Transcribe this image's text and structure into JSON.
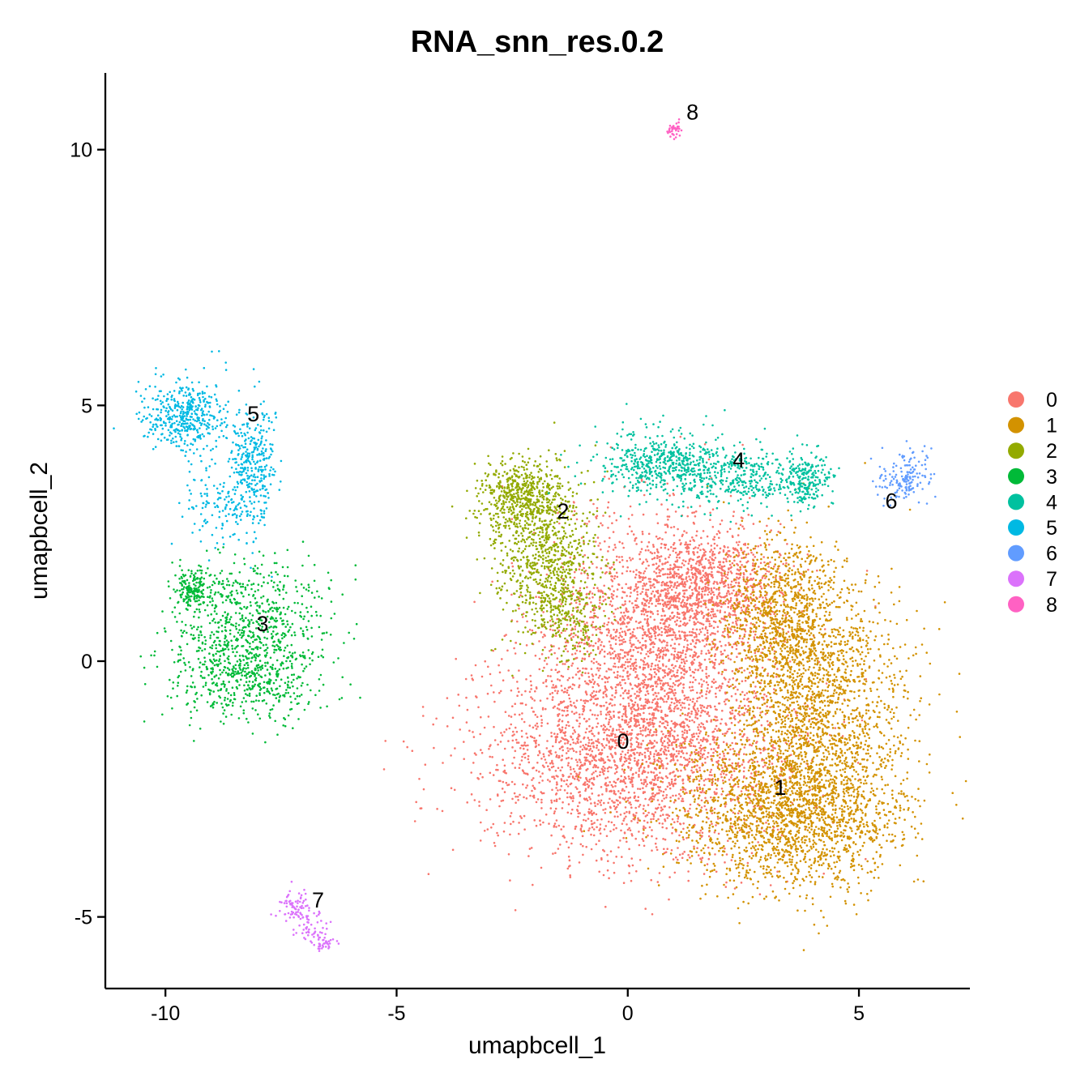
{
  "chart_data": {
    "type": "scatter",
    "title": "RNA_snn_res.0.2",
    "xlabel": "umapbcell_1",
    "ylabel": "umapbcell_2",
    "xlim": [
      -11.3,
      7.4
    ],
    "ylim": [
      -6.4,
      11.5
    ],
    "x_ticks": [
      -10,
      -5,
      0,
      5
    ],
    "x_tick_labels": [
      "-10",
      "-5",
      "0",
      "5"
    ],
    "y_ticks": [
      -5,
      0,
      5,
      10
    ],
    "y_tick_labels": [
      "-5",
      "0",
      "5",
      "10"
    ],
    "grid": false,
    "legend_position": "right",
    "legend": [
      {
        "name": "0",
        "color": "#F8766D"
      },
      {
        "name": "1",
        "color": "#D39200"
      },
      {
        "name": "2",
        "color": "#93AA00"
      },
      {
        "name": "3",
        "color": "#00BA38"
      },
      {
        "name": "4",
        "color": "#00C19F"
      },
      {
        "name": "5",
        "color": "#00B9E3"
      },
      {
        "name": "6",
        "color": "#619CFF"
      },
      {
        "name": "7",
        "color": "#DB72FB"
      },
      {
        "name": "8",
        "color": "#FF61C3"
      }
    ],
    "cluster_labels": [
      {
        "name": "0",
        "x": -0.1,
        "y": -1.6
      },
      {
        "name": "1",
        "x": 3.3,
        "y": -2.5
      },
      {
        "name": "2",
        "x": -1.4,
        "y": 2.9
      },
      {
        "name": "3",
        "x": -7.9,
        "y": 0.7
      },
      {
        "name": "4",
        "x": 2.4,
        "y": 3.9
      },
      {
        "name": "5",
        "x": -8.1,
        "y": 4.8
      },
      {
        "name": "6",
        "x": 5.7,
        "y": 3.1
      },
      {
        "name": "7",
        "x": -6.7,
        "y": -4.7
      },
      {
        "name": "8",
        "x": 1.4,
        "y": 10.7
      }
    ],
    "clusters": [
      {
        "name": "0",
        "color": "#F8766D",
        "n": 5200,
        "blobs": [
          {
            "cx": 0.1,
            "cy": -1.9,
            "sx": 1.7,
            "sy": 1.0,
            "w": 0.45
          },
          {
            "cx": 0.6,
            "cy": 0.4,
            "sx": 1.2,
            "sy": 1.2,
            "w": 0.4
          },
          {
            "cx": 1.7,
            "cy": 1.5,
            "sx": 0.8,
            "sy": 0.5,
            "w": 0.15
          }
        ]
      },
      {
        "name": "1",
        "color": "#D39200",
        "n": 4500,
        "blobs": [
          {
            "cx": 3.5,
            "cy": -2.9,
            "sx": 1.2,
            "sy": 0.75,
            "w": 0.45
          },
          {
            "cx": 4.2,
            "cy": -0.8,
            "sx": 0.9,
            "sy": 1.2,
            "w": 0.35
          },
          {
            "cx": 3.3,
            "cy": 0.9,
            "sx": 0.6,
            "sy": 0.8,
            "w": 0.2
          }
        ]
      },
      {
        "name": "2",
        "color": "#93AA00",
        "n": 1500,
        "blobs": [
          {
            "cx": -2.3,
            "cy": 3.2,
            "sx": 0.45,
            "sy": 0.35,
            "w": 0.35
          },
          {
            "cx": -1.8,
            "cy": 2.1,
            "sx": 0.6,
            "sy": 0.8,
            "w": 0.5
          },
          {
            "cx": -1.3,
            "cy": 0.9,
            "sx": 0.4,
            "sy": 0.5,
            "w": 0.15
          }
        ]
      },
      {
        "name": "3",
        "color": "#00BA38",
        "n": 1300,
        "blobs": [
          {
            "cx": -8.3,
            "cy": -0.2,
            "sx": 0.8,
            "sy": 0.5,
            "w": 0.5
          },
          {
            "cx": -8.0,
            "cy": 1.0,
            "sx": 0.8,
            "sy": 0.5,
            "w": 0.35
          },
          {
            "cx": -9.4,
            "cy": 1.4,
            "sx": 0.2,
            "sy": 0.2,
            "w": 0.15
          }
        ]
      },
      {
        "name": "4",
        "color": "#00C19F",
        "n": 1100,
        "blobs": [
          {
            "cx": 0.7,
            "cy": 3.9,
            "sx": 0.7,
            "sy": 0.3,
            "w": 0.4
          },
          {
            "cx": 2.3,
            "cy": 3.6,
            "sx": 0.8,
            "sy": 0.3,
            "w": 0.4
          },
          {
            "cx": 3.9,
            "cy": 3.5,
            "sx": 0.25,
            "sy": 0.25,
            "w": 0.2
          }
        ]
      },
      {
        "name": "5",
        "color": "#00B9E3",
        "n": 900,
        "blobs": [
          {
            "cx": -9.5,
            "cy": 4.8,
            "sx": 0.5,
            "sy": 0.35,
            "w": 0.5
          },
          {
            "cx": -8.1,
            "cy": 3.8,
            "sx": 0.25,
            "sy": 0.6,
            "w": 0.35
          },
          {
            "cx": -8.9,
            "cy": 3.1,
            "sx": 0.4,
            "sy": 0.4,
            "w": 0.15
          }
        ]
      },
      {
        "name": "6",
        "color": "#619CFF",
        "n": 160,
        "blobs": [
          {
            "cx": 6.0,
            "cy": 3.6,
            "sx": 0.3,
            "sy": 0.25,
            "w": 1.0
          }
        ]
      },
      {
        "name": "7",
        "color": "#DB72FB",
        "n": 160,
        "blobs": [
          {
            "cx": -7.2,
            "cy": -4.8,
            "sx": 0.15,
            "sy": 0.15,
            "w": 0.4
          },
          {
            "cx": -6.9,
            "cy": -5.2,
            "sx": 0.18,
            "sy": 0.15,
            "w": 0.35
          },
          {
            "cx": -6.6,
            "cy": -5.5,
            "sx": 0.15,
            "sy": 0.08,
            "w": 0.25
          }
        ]
      },
      {
        "name": "8",
        "color": "#FF61C3",
        "n": 40,
        "blobs": [
          {
            "cx": 1.0,
            "cy": 10.4,
            "sx": 0.08,
            "sy": 0.08,
            "w": 1.0
          }
        ]
      }
    ]
  }
}
